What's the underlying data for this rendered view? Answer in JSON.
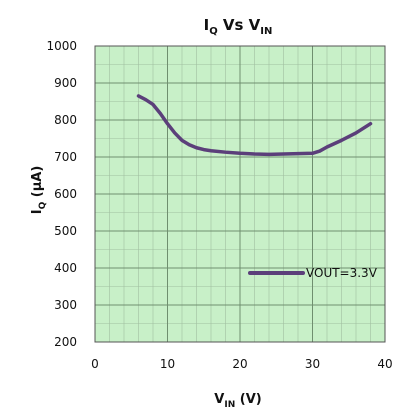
{
  "chart_data": {
    "type": "line",
    "title": {
      "main": "I",
      "sub": "Q",
      "mid": " Vs  V",
      "sub2": "IN"
    },
    "xlabel": {
      "main": "V",
      "sub": "IN",
      "rest": " (V)"
    },
    "ylabel": {
      "main": "I",
      "sub": "Q",
      "rest": " (µA)"
    },
    "xlim": [
      0,
      40
    ],
    "ylim": [
      200,
      1000
    ],
    "x_ticks": [
      "0",
      "10",
      "20",
      "30",
      "40"
    ],
    "y_ticks": [
      "200",
      "300",
      "400",
      "500",
      "600",
      "700",
      "800",
      "900",
      "1000"
    ],
    "grid": true,
    "minor_grid": {
      "x_step": 2,
      "y_step": 50
    },
    "legend_position": "lower-right",
    "colors": {
      "background": "#c8f0c8",
      "grid_minor": "#9fbf9f",
      "grid_major": "#6f8f6f",
      "line": "#5b3f7a"
    },
    "series": [
      {
        "name": "VOUT=3.3V",
        "x": [
          6,
          7,
          8,
          9,
          10,
          11,
          12,
          13,
          14,
          15,
          16,
          18,
          20,
          22,
          24,
          26,
          28,
          30,
          31,
          32,
          34,
          36,
          38
        ],
        "y": [
          865,
          855,
          842,
          818,
          790,
          765,
          745,
          733,
          725,
          720,
          717,
          713,
          710,
          708,
          707,
          708,
          709,
          710,
          716,
          727,
          745,
          765,
          790
        ]
      }
    ]
  }
}
